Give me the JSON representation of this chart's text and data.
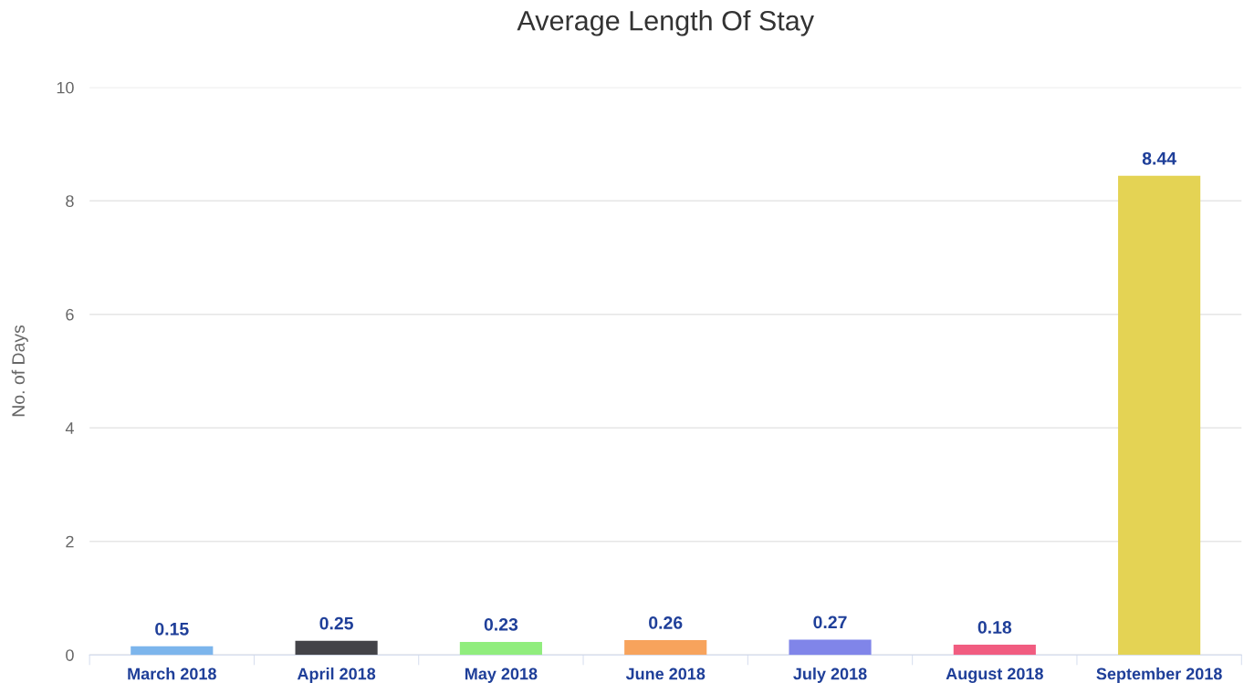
{
  "chart_data": {
    "type": "bar",
    "title": "Average Length Of Stay",
    "ylabel": "No. of Days",
    "categories": [
      "March 2018",
      "April 2018",
      "May 2018",
      "June 2018",
      "July 2018",
      "August 2018",
      "September 2018"
    ],
    "values": [
      0.15,
      0.25,
      0.23,
      0.26,
      0.27,
      0.18,
      8.44
    ],
    "colors": [
      "#7cb5ec",
      "#434348",
      "#90ed7d",
      "#f7a35c",
      "#8085e9",
      "#f15c80",
      "#e4d354"
    ],
    "ylim": [
      0,
      10
    ],
    "yticks": [
      0,
      2,
      4,
      6,
      8,
      10
    ],
    "grid": "y",
    "data_labels": true
  }
}
